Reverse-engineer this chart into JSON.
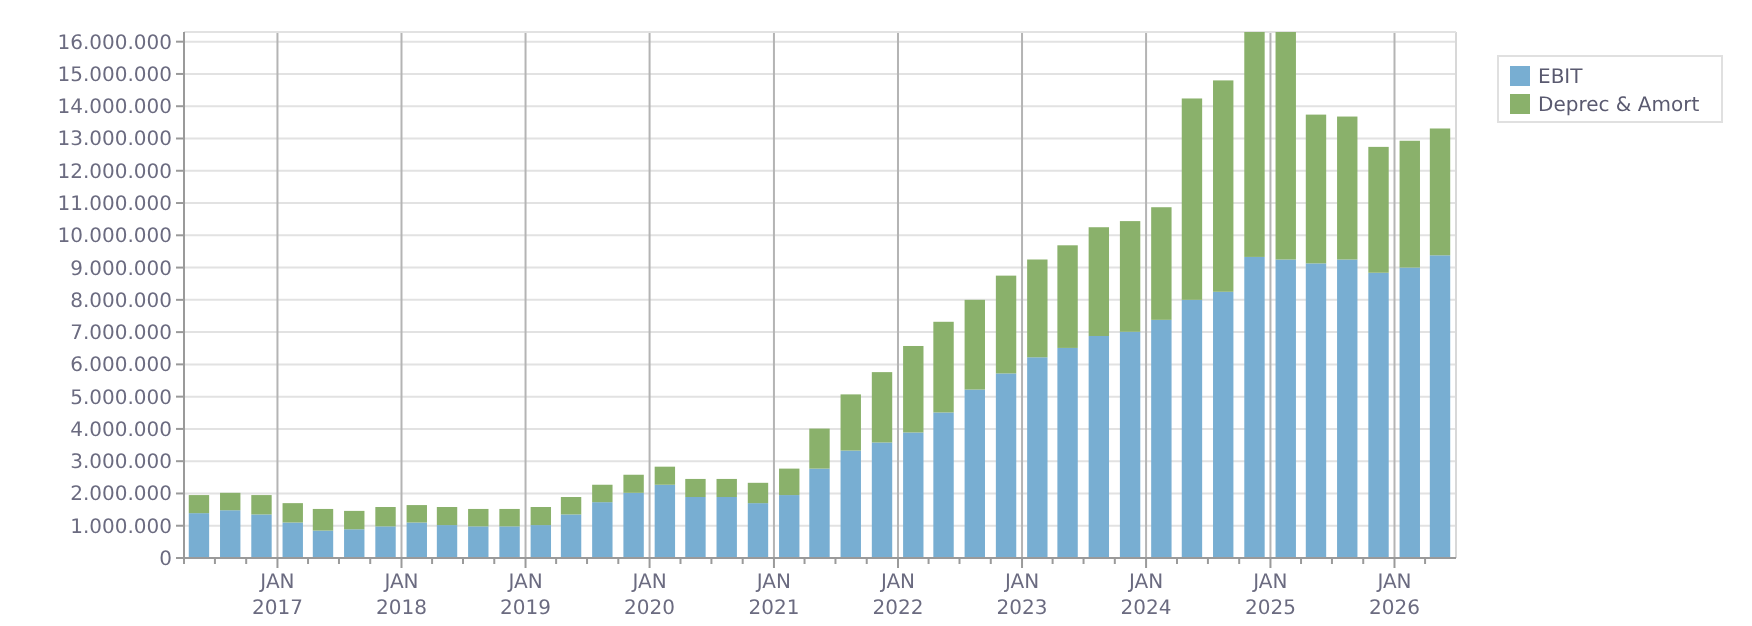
{
  "chart_data": {
    "type": "bar",
    "stacked": true,
    "x": [
      "2016-05-15",
      "2016-08-15",
      "2016-11-15",
      "2017-02-15",
      "2017-05-15",
      "2017-08-15",
      "2017-11-15",
      "2018-02-15",
      "2018-05-15",
      "2018-08-15",
      "2018-11-15",
      "2019-02-15",
      "2019-05-15",
      "2019-08-15",
      "2019-11-15",
      "2020-02-15",
      "2020-05-15",
      "2020-08-15",
      "2020-11-15",
      "2021-02-15",
      "2021-05-15",
      "2021-08-15",
      "2021-11-15",
      "2022-02-15",
      "2022-05-15",
      "2022-08-15",
      "2022-11-15",
      "2023-02-15",
      "2023-05-15",
      "2023-08-15",
      "2023-11-15",
      "2024-02-15",
      "2024-05-15",
      "2024-08-15",
      "2024-11-15",
      "2025-02-15",
      "2025-05-15",
      "2025-08-15",
      "2025-11-15",
      "2026-02-15",
      "2026-05-15"
    ],
    "series": [
      {
        "name": "EBIT",
        "color": "#78aed2",
        "values": [
          1390000,
          1480000,
          1350000,
          1100000,
          850000,
          890000,
          980000,
          1100000,
          1020000,
          980000,
          980000,
          1020000,
          1350000,
          1730000,
          2020000,
          2270000,
          1890000,
          1890000,
          1700000,
          1950000,
          2770000,
          3330000,
          3580000,
          3890000,
          4510000,
          5220000,
          5720000,
          6220000,
          6510000,
          6880000,
          7010000,
          7380000,
          8000000,
          8250000,
          9330000,
          9250000,
          9130000,
          9250000,
          8840000,
          9000000,
          9380000
        ]
      },
      {
        "name": "Deprec & Amort",
        "color": "#8ab16b",
        "values": [
          560000,
          540000,
          600000,
          600000,
          670000,
          570000,
          600000,
          540000,
          560000,
          540000,
          540000,
          560000,
          540000,
          540000,
          560000,
          560000,
          560000,
          560000,
          630000,
          820000,
          1240000,
          1740000,
          2180000,
          2680000,
          2810000,
          2780000,
          3030000,
          3030000,
          3180000,
          3370000,
          3430000,
          3490000,
          6240000,
          6550000,
          6970000,
          7050000,
          4610000,
          4430000,
          3900000,
          3930000,
          3930000
        ]
      }
    ],
    "xlim": [
      "2016-04-01",
      "2026-07-01"
    ],
    "xticks": [
      {
        "value": "2016-04-01",
        "label": null
      },
      {
        "value": "2016-07-01",
        "label": null
      },
      {
        "value": "2016-10-01",
        "label": null
      },
      {
        "value": "2017-01-01",
        "label": "JAN 2017"
      },
      {
        "value": "2017-04-01",
        "label": null
      },
      {
        "value": "2017-07-01",
        "label": null
      },
      {
        "value": "2017-10-01",
        "label": null
      },
      {
        "value": "2018-01-01",
        "label": "JAN 2018"
      },
      {
        "value": "2018-04-01",
        "label": null
      },
      {
        "value": "2018-07-01",
        "label": null
      },
      {
        "value": "2018-10-01",
        "label": null
      },
      {
        "value": "2019-01-01",
        "label": "JAN 2019"
      },
      {
        "value": "2019-04-01",
        "label": null
      },
      {
        "value": "2019-07-01",
        "label": null
      },
      {
        "value": "2019-10-01",
        "label": null
      },
      {
        "value": "2020-01-01",
        "label": "JAN 2020"
      },
      {
        "value": "2020-04-01",
        "label": null
      },
      {
        "value": "2020-07-01",
        "label": null
      },
      {
        "value": "2020-10-01",
        "label": null
      },
      {
        "value": "2021-01-01",
        "label": "JAN 2021"
      },
      {
        "value": "2021-04-01",
        "label": null
      },
      {
        "value": "2021-07-01",
        "label": null
      },
      {
        "value": "2021-10-01",
        "label": null
      },
      {
        "value": "2022-01-01",
        "label": "JAN 2022"
      },
      {
        "value": "2022-04-01",
        "label": null
      },
      {
        "value": "2022-07-01",
        "label": null
      },
      {
        "value": "2022-10-01",
        "label": null
      },
      {
        "value": "2023-01-01",
        "label": "JAN 2023"
      },
      {
        "value": "2023-04-01",
        "label": null
      },
      {
        "value": "2023-07-01",
        "label": null
      },
      {
        "value": "2023-10-01",
        "label": null
      },
      {
        "value": "2024-01-01",
        "label": "JAN 2024"
      },
      {
        "value": "2024-04-01",
        "label": null
      },
      {
        "value": "2024-07-01",
        "label": null
      },
      {
        "value": "2024-10-01",
        "label": null
      },
      {
        "value": "2025-01-01",
        "label": "JAN 2025"
      },
      {
        "value": "2025-04-01",
        "label": null
      },
      {
        "value": "2025-07-01",
        "label": null
      },
      {
        "value": "2025-10-01",
        "label": null
      },
      {
        "value": "2026-01-01",
        "label": "JAN 2026"
      },
      {
        "value": "2026-04-01",
        "label": null
      }
    ],
    "ylim": [
      0,
      16300000
    ],
    "yticks": [
      {
        "value": 0,
        "label": "0"
      },
      {
        "value": 1000000,
        "label": "1.000.000"
      },
      {
        "value": 2000000,
        "label": "2.000.000"
      },
      {
        "value": 3000000,
        "label": "3.000.000"
      },
      {
        "value": 4000000,
        "label": "4.000.000"
      },
      {
        "value": 5000000,
        "label": "5.000.000"
      },
      {
        "value": 6000000,
        "label": "6.000.000"
      },
      {
        "value": 7000000,
        "label": "7.000.000"
      },
      {
        "value": 8000000,
        "label": "8.000.000"
      },
      {
        "value": 9000000,
        "label": "9.000.000"
      },
      {
        "value": 10000000,
        "label": "10.000.000"
      },
      {
        "value": 11000000,
        "label": "11.000.000"
      },
      {
        "value": 12000000,
        "label": "12.000.000"
      },
      {
        "value": 13000000,
        "label": "13.000.000"
      },
      {
        "value": 14000000,
        "label": "14.000.000"
      },
      {
        "value": 15000000,
        "label": "15.000.000"
      },
      {
        "value": 16000000,
        "label": "16.000.000"
      }
    ],
    "grid": true,
    "legend": "top right"
  }
}
